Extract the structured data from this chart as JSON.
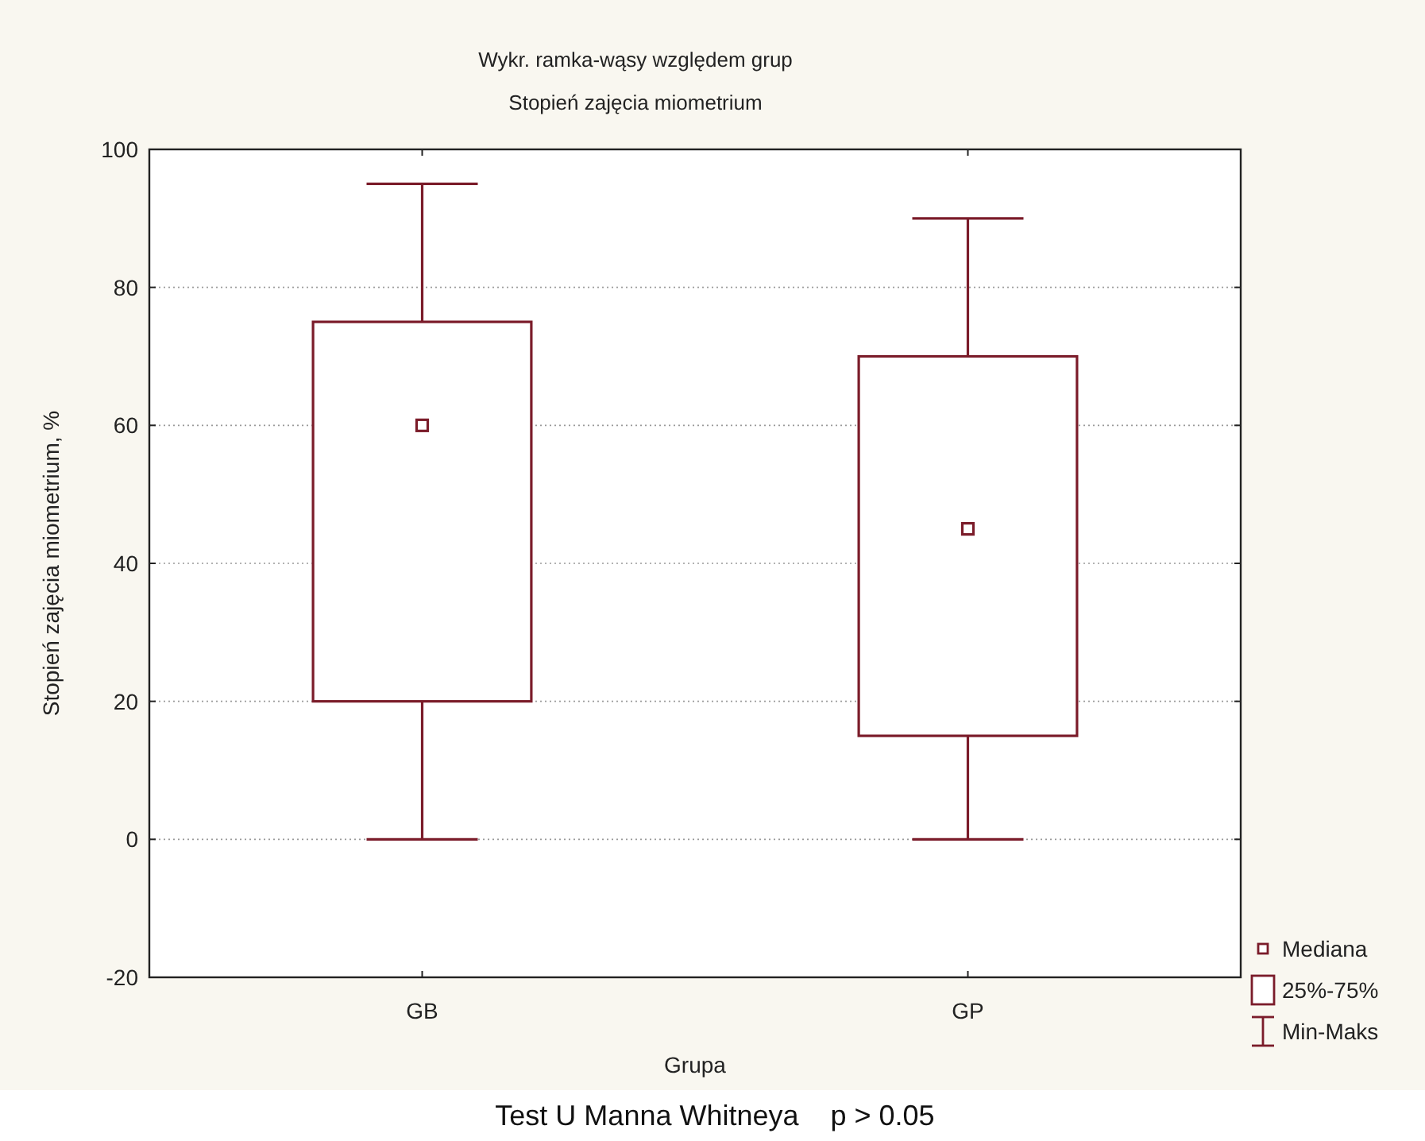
{
  "chart_data": {
    "type": "box",
    "title": "Wykr. ramka-wąsy względem grup",
    "subtitle": "Stopień zajęcia miometrium",
    "xlabel": "Grupa",
    "ylabel": "Stopień zajęcia miometrium, %",
    "categories": [
      "GB",
      "GP"
    ],
    "boxes": [
      {
        "low": 0,
        "q1": 20,
        "median": 60,
        "q3": 75,
        "high": 95
      },
      {
        "low": 0,
        "q1": 15,
        "median": 45,
        "q3": 70,
        "high": 90
      }
    ],
    "color": "#7b1c2a",
    "ylim": [
      -20,
      100
    ],
    "yticks": [
      -20,
      0,
      20,
      40,
      60,
      80,
      100
    ],
    "grid": "y",
    "marker": "square",
    "annotations": [
      "Mediana",
      "25%-75%",
      "Min-Maks",
      "Test U Manna Whitneya    p > 0.05"
    ]
  }
}
